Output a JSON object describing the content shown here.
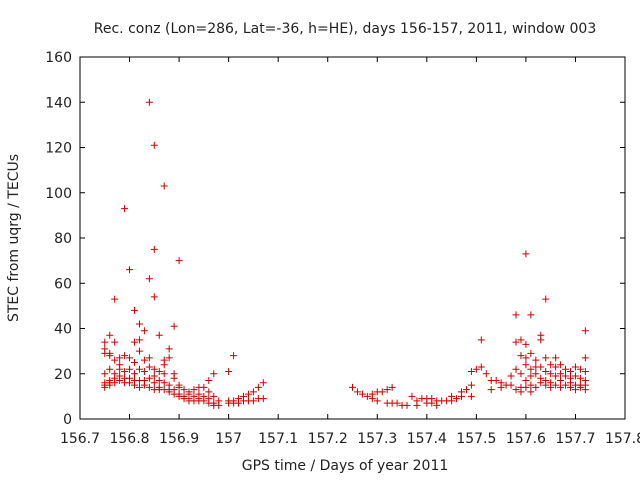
{
  "chart_data": {
    "type": "scatter",
    "title": "Rec. conz (Lon=286, Lat=-36, h=HE), days 156-157, 2011, window 003",
    "xlabel": "GPS time / Days of year 2011",
    "ylabel": "STEC from uqrg / TECUs",
    "xlim": [
      156.7,
      157.8
    ],
    "ylim": [
      0,
      160
    ],
    "x_ticks": [
      "156.7",
      "156.8",
      "156.9",
      "157",
      "157.1",
      "157.2",
      "157.3",
      "157.4",
      "157.5",
      "157.6",
      "157.7",
      "157.8"
    ],
    "y_ticks": [
      "0",
      "20",
      "40",
      "60",
      "80",
      "100",
      "120",
      "140",
      "160"
    ],
    "grid": false,
    "marker": "+",
    "color": "#cc0000",
    "points": [
      [
        156.75,
        34
      ],
      [
        156.75,
        31
      ],
      [
        156.75,
        29
      ],
      [
        156.75,
        20
      ],
      [
        156.75,
        16
      ],
      [
        156.75,
        15
      ],
      [
        156.75,
        14
      ],
      [
        156.76,
        37
      ],
      [
        156.76,
        29
      ],
      [
        156.76,
        28
      ],
      [
        156.76,
        22
      ],
      [
        156.76,
        17
      ],
      [
        156.76,
        16
      ],
      [
        156.76,
        15
      ],
      [
        156.77,
        53
      ],
      [
        156.77,
        34
      ],
      [
        156.77,
        26
      ],
      [
        156.77,
        20
      ],
      [
        156.77,
        18
      ],
      [
        156.77,
        16
      ],
      [
        156.78,
        27
      ],
      [
        156.78,
        24
      ],
      [
        156.78,
        22
      ],
      [
        156.78,
        19
      ],
      [
        156.78,
        17
      ],
      [
        156.79,
        93
      ],
      [
        156.79,
        28
      ],
      [
        156.79,
        21
      ],
      [
        156.79,
        18
      ],
      [
        156.79,
        16
      ],
      [
        156.8,
        66
      ],
      [
        156.8,
        27
      ],
      [
        156.8,
        22
      ],
      [
        156.8,
        18
      ],
      [
        156.8,
        16
      ],
      [
        156.81,
        48
      ],
      [
        156.81,
        34
      ],
      [
        156.81,
        25
      ],
      [
        156.81,
        20
      ],
      [
        156.81,
        17
      ],
      [
        156.81,
        15
      ],
      [
        156.82,
        42
      ],
      [
        156.82,
        35
      ],
      [
        156.82,
        30
      ],
      [
        156.82,
        22
      ],
      [
        156.82,
        17
      ],
      [
        156.82,
        14
      ],
      [
        156.83,
        39
      ],
      [
        156.83,
        26
      ],
      [
        156.83,
        21
      ],
      [
        156.83,
        17
      ],
      [
        156.83,
        15
      ],
      [
        156.84,
        140
      ],
      [
        156.84,
        62
      ],
      [
        156.84,
        27
      ],
      [
        156.84,
        23
      ],
      [
        156.84,
        18
      ],
      [
        156.84,
        14
      ],
      [
        156.85,
        121
      ],
      [
        156.85,
        75
      ],
      [
        156.85,
        54
      ],
      [
        156.85,
        22
      ],
      [
        156.85,
        19
      ],
      [
        156.85,
        16
      ],
      [
        156.85,
        13
      ],
      [
        156.86,
        37
      ],
      [
        156.86,
        21
      ],
      [
        156.86,
        17
      ],
      [
        156.86,
        14
      ],
      [
        156.86,
        13
      ],
      [
        156.87,
        103
      ],
      [
        156.87,
        26
      ],
      [
        156.87,
        24
      ],
      [
        156.87,
        20
      ],
      [
        156.87,
        16
      ],
      [
        156.87,
        13
      ],
      [
        156.88,
        31
      ],
      [
        156.88,
        27
      ],
      [
        156.88,
        15
      ],
      [
        156.88,
        13
      ],
      [
        156.88,
        12
      ],
      [
        156.89,
        41
      ],
      [
        156.89,
        20
      ],
      [
        156.89,
        18
      ],
      [
        156.89,
        13
      ],
      [
        156.89,
        11
      ],
      [
        156.9,
        70
      ],
      [
        156.9,
        15
      ],
      [
        156.9,
        14
      ],
      [
        156.9,
        11
      ],
      [
        156.9,
        10
      ],
      [
        156.91,
        13
      ],
      [
        156.91,
        10
      ],
      [
        156.91,
        9
      ],
      [
        156.92,
        12
      ],
      [
        156.92,
        11
      ],
      [
        156.92,
        9
      ],
      [
        156.92,
        8
      ],
      [
        156.93,
        13
      ],
      [
        156.93,
        10
      ],
      [
        156.93,
        8
      ],
      [
        156.94,
        14
      ],
      [
        156.94,
        11
      ],
      [
        156.94,
        9
      ],
      [
        156.94,
        8
      ],
      [
        156.95,
        14
      ],
      [
        156.95,
        10
      ],
      [
        156.95,
        8
      ],
      [
        156.96,
        17
      ],
      [
        156.96,
        12
      ],
      [
        156.96,
        9
      ],
      [
        156.96,
        7
      ],
      [
        156.97,
        20
      ],
      [
        156.97,
        10
      ],
      [
        156.97,
        7
      ],
      [
        156.97,
        6
      ],
      [
        156.98,
        8
      ],
      [
        156.98,
        6
      ],
      [
        157.0,
        21
      ],
      [
        157.0,
        8
      ],
      [
        157.0,
        7
      ],
      [
        157.01,
        28
      ],
      [
        157.01,
        8
      ],
      [
        157.01,
        7
      ],
      [
        157.02,
        9
      ],
      [
        157.02,
        7
      ],
      [
        157.03,
        10
      ],
      [
        157.03,
        8
      ],
      [
        157.04,
        11
      ],
      [
        157.04,
        8
      ],
      [
        157.05,
        12
      ],
      [
        157.05,
        8
      ],
      [
        157.06,
        14
      ],
      [
        157.06,
        9
      ],
      [
        157.07,
        16
      ],
      [
        157.07,
        9
      ],
      [
        157.25,
        14
      ],
      [
        157.26,
        12
      ],
      [
        157.27,
        11
      ],
      [
        157.28,
        10
      ],
      [
        157.29,
        9
      ],
      [
        157.29,
        11
      ],
      [
        157.3,
        8
      ],
      [
        157.3,
        12
      ],
      [
        157.31,
        12
      ],
      [
        157.32,
        7
      ],
      [
        157.32,
        13
      ],
      [
        157.33,
        7
      ],
      [
        157.33,
        14
      ],
      [
        157.34,
        7
      ],
      [
        157.35,
        6
      ],
      [
        157.36,
        6
      ],
      [
        157.37,
        10
      ],
      [
        157.38,
        6
      ],
      [
        157.38,
        8
      ],
      [
        157.39,
        9
      ],
      [
        157.4,
        7
      ],
      [
        157.4,
        9
      ],
      [
        157.41,
        9
      ],
      [
        157.41,
        7
      ],
      [
        157.42,
        8
      ],
      [
        157.42,
        6
      ],
      [
        157.43,
        8
      ],
      [
        157.44,
        8
      ],
      [
        157.45,
        8
      ],
      [
        157.45,
        10
      ],
      [
        157.46,
        9
      ],
      [
        157.47,
        10
      ],
      [
        157.47,
        12
      ],
      [
        157.48,
        13
      ],
      [
        157.49,
        15
      ],
      [
        157.49,
        21
      ],
      [
        157.49,
        10
      ],
      [
        157.5,
        22
      ],
      [
        157.51,
        35
      ],
      [
        157.51,
        23
      ],
      [
        157.52,
        20
      ],
      [
        157.53,
        17
      ],
      [
        157.53,
        13
      ],
      [
        157.54,
        17
      ],
      [
        157.55,
        16
      ],
      [
        157.55,
        14
      ],
      [
        157.56,
        15
      ],
      [
        157.57,
        15
      ],
      [
        157.57,
        19
      ],
      [
        157.58,
        46
      ],
      [
        157.58,
        34
      ],
      [
        157.58,
        22
      ],
      [
        157.58,
        13
      ],
      [
        157.59,
        35
      ],
      [
        157.59,
        28
      ],
      [
        157.59,
        20
      ],
      [
        157.59,
        14
      ],
      [
        157.59,
        12
      ],
      [
        157.6,
        73
      ],
      [
        157.6,
        33
      ],
      [
        157.6,
        27
      ],
      [
        157.6,
        24
      ],
      [
        157.6,
        17
      ],
      [
        157.6,
        14
      ],
      [
        157.61,
        46
      ],
      [
        157.61,
        29
      ],
      [
        157.61,
        22
      ],
      [
        157.61,
        19
      ],
      [
        157.61,
        15
      ],
      [
        157.61,
        12
      ],
      [
        157.62,
        26
      ],
      [
        157.62,
        23
      ],
      [
        157.62,
        20
      ],
      [
        157.62,
        14
      ],
      [
        157.63,
        37
      ],
      [
        157.63,
        35
      ],
      [
        157.63,
        23
      ],
      [
        157.63,
        18
      ],
      [
        157.63,
        16
      ],
      [
        157.64,
        53
      ],
      [
        157.64,
        27
      ],
      [
        157.64,
        21
      ],
      [
        157.64,
        17
      ],
      [
        157.64,
        15
      ],
      [
        157.65,
        24
      ],
      [
        157.65,
        20
      ],
      [
        157.65,
        16
      ],
      [
        157.65,
        14
      ],
      [
        157.66,
        27
      ],
      [
        157.66,
        23
      ],
      [
        157.66,
        19
      ],
      [
        157.66,
        15
      ],
      [
        157.67,
        24
      ],
      [
        157.67,
        20
      ],
      [
        157.67,
        17
      ],
      [
        157.67,
        14
      ],
      [
        157.68,
        22
      ],
      [
        157.68,
        19
      ],
      [
        157.68,
        15
      ],
      [
        157.69,
        21
      ],
      [
        157.69,
        18
      ],
      [
        157.69,
        16
      ],
      [
        157.69,
        14
      ],
      [
        157.7,
        23
      ],
      [
        157.7,
        19
      ],
      [
        157.7,
        15
      ],
      [
        157.7,
        13
      ],
      [
        157.71,
        22
      ],
      [
        157.71,
        18
      ],
      [
        157.71,
        15
      ],
      [
        157.71,
        14
      ],
      [
        157.72,
        39
      ],
      [
        157.72,
        27
      ],
      [
        157.72,
        21
      ],
      [
        157.72,
        17
      ],
      [
        157.72,
        15
      ],
      [
        157.72,
        13
      ]
    ]
  }
}
